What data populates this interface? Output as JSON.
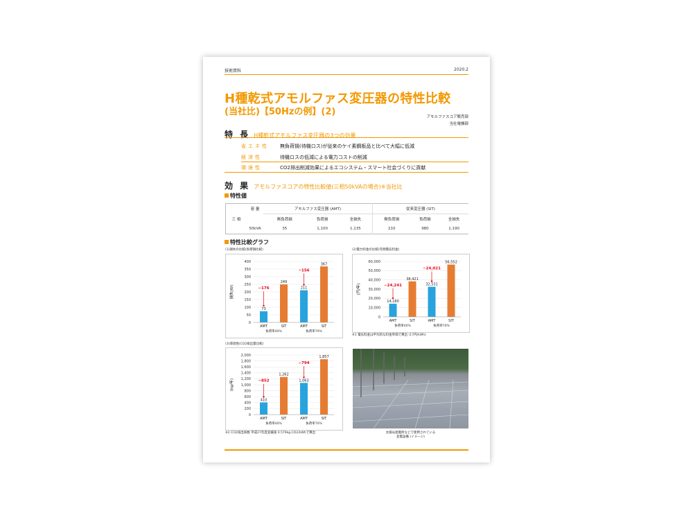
{
  "header": {
    "left": "技術資料",
    "right": "2020.2"
  },
  "title": "H種乾式アモルファス変圧器の特性比較",
  "subtitle": "(当社比)【50Hzの例】(2)",
  "dept": [
    "アモルファスコア販売部",
    "当社電機部"
  ],
  "features": {
    "heading": "特 長",
    "lead": "H種乾式アモルファス変圧器の3つの効果",
    "rows": [
      {
        "key": "省エネ性",
        "text": "無負荷損(待機ロス)が従来のケイ素鋼板品と比べて大幅に低減"
      },
      {
        "key": "経済性",
        "text": "待機ロスの低減による電力コストの削減"
      },
      {
        "key": "環境性",
        "text": "CO2排出削減効果によるエコシステム・スマート社会づくりに貢献"
      }
    ]
  },
  "effect": {
    "heading": "効 果",
    "lead": "アモルファスコアの特性比較値(三相50kVAの場合)※当社比"
  },
  "table": {
    "heading": "特性値",
    "capacity_label": "容 量",
    "phase": "三 相",
    "capacity": "50kVA",
    "groups": [
      "アモルファス変圧器 (AMT)",
      "従来変圧器 (SIT)"
    ],
    "cols": [
      "無負荷損",
      "負荷損",
      "全損失",
      "無負荷損",
      "負荷損",
      "全損失"
    ],
    "values": [
      "35",
      "1,100",
      "1,135",
      "210",
      "980",
      "1,190"
    ]
  },
  "graphs_heading": "特性比較グラフ",
  "chart_data": [
    {
      "type": "bar",
      "title": "(1)損失の比較(負荷損比較)",
      "ylabel": "損失(W)",
      "ylim": [
        0,
        400
      ],
      "yticks": [
        0,
        50,
        100,
        150,
        200,
        250,
        300,
        350,
        400
      ],
      "categories": [
        "AMT",
        "SIT",
        "AMT",
        "SIT"
      ],
      "groups": [
        "負荷率40%",
        "負荷率70%"
      ],
      "values": [
        73,
        249,
        211,
        367
      ],
      "diffs": [
        "−176",
        "−156"
      ],
      "colors": [
        "#29a3dc",
        "#e67c32"
      ],
      "note": ""
    },
    {
      "type": "bar",
      "title": "(2)電力料金の比較(年間電気料金)",
      "ylabel": "(円/年)",
      "ylim": [
        0,
        60000
      ],
      "yticks": [
        0,
        10000,
        20000,
        30000,
        40000,
        50000,
        60000
      ],
      "categories": [
        "AMT",
        "SIT",
        "AMT",
        "SIT"
      ],
      "groups": [
        "負荷率40%",
        "負荷率70%"
      ],
      "values": [
        14180,
        38421,
        32531,
        56552
      ],
      "labels": [
        "14,180",
        "38,421",
        "32,531",
        "56,552"
      ],
      "diffs": [
        "−24,241",
        "−24,021"
      ],
      "colors": [
        "#29a3dc",
        "#e67c32"
      ],
      "note": "※1 電気料金は平均的な料金単価で算出 (17円/kWh)"
    },
    {
      "type": "bar",
      "title": "(3)環境性(CO2排出量比較)",
      "ylabel": "(kg/年)",
      "ylim": [
        0,
        2000
      ],
      "yticks": [
        0,
        200,
        400,
        600,
        800,
        1000,
        1200,
        1400,
        1600,
        1800,
        2000
      ],
      "categories": [
        "AMT",
        "SIT",
        "AMT",
        "SIT"
      ],
      "groups": [
        "負荷率40%",
        "負荷率70%"
      ],
      "values": [
        410,
        1262,
        1063,
        1857
      ],
      "labels": [
        "410",
        "1,262",
        "1,063",
        "1,857"
      ],
      "diffs": [
        "−852",
        "−794"
      ],
      "colors": [
        "#29a3dc",
        "#e67c32"
      ],
      "note": "※2 CO2排出係数 平成27年度実績値 0.579kg-CO2/kWhで算出"
    }
  ],
  "photo_caption": [
    "太陽光発電所などで使用されている",
    "変電設備 (イメージ)"
  ]
}
